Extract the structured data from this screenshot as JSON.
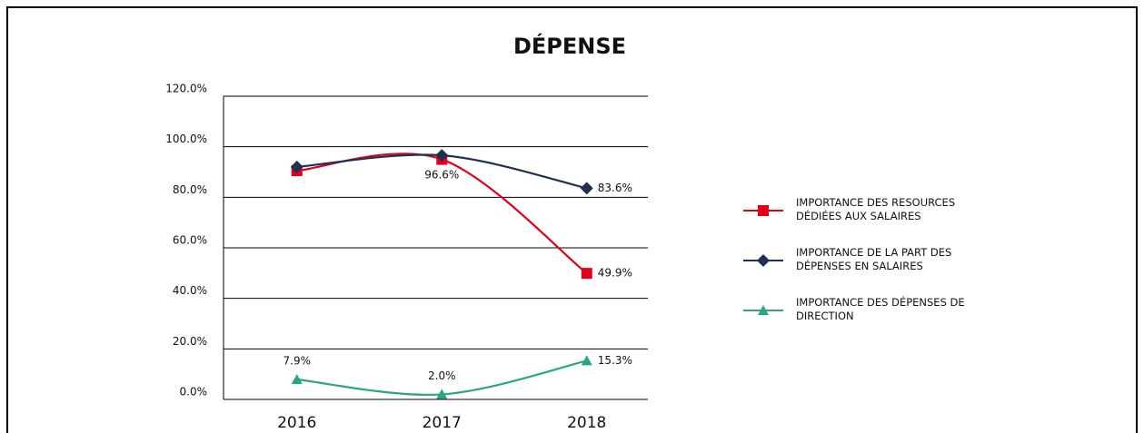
{
  "chart_data": {
    "type": "line",
    "title": "DÉPENSE",
    "categories": [
      "2016",
      "2017",
      "2018"
    ],
    "series": [
      {
        "name": "IMPORTANCE DES RESOURCES DÉDIÉES AUX SALAIRES",
        "color": "#e0001b",
        "marker": "square",
        "values": [
          90.5,
          95.0,
          49.9
        ],
        "value_labels": [
          null,
          null,
          "49.9%"
        ]
      },
      {
        "name": "IMPORTANCE DE LA PART DES DÉPENSES EN SALAIRES",
        "color": "#1f3050",
        "marker": "diamond",
        "values": [
          92.0,
          96.6,
          83.6
        ],
        "value_labels": [
          null,
          "96.6%",
          "83.6%"
        ]
      },
      {
        "name": "IMPORTANCE DES DÉPENSES DE DIRECTION",
        "color": "#2aa782",
        "marker": "triangle",
        "values": [
          7.9,
          2.0,
          15.3
        ],
        "value_labels": [
          "7.9%",
          "2.0%",
          "15.3%"
        ]
      }
    ],
    "ylim": [
      0,
      120
    ],
    "yticks": [
      {
        "value": 0,
        "label": "0.0%"
      },
      {
        "value": 20,
        "label": "20.0%"
      },
      {
        "value": 40,
        "label": "40.0%"
      },
      {
        "value": 60,
        "label": "60.0%"
      },
      {
        "value": 80,
        "label": "80.0%"
      },
      {
        "value": 100,
        "label": "100.0%"
      },
      {
        "value": 120,
        "label": "120.0%"
      }
    ],
    "grid": true,
    "legend": "right"
  }
}
